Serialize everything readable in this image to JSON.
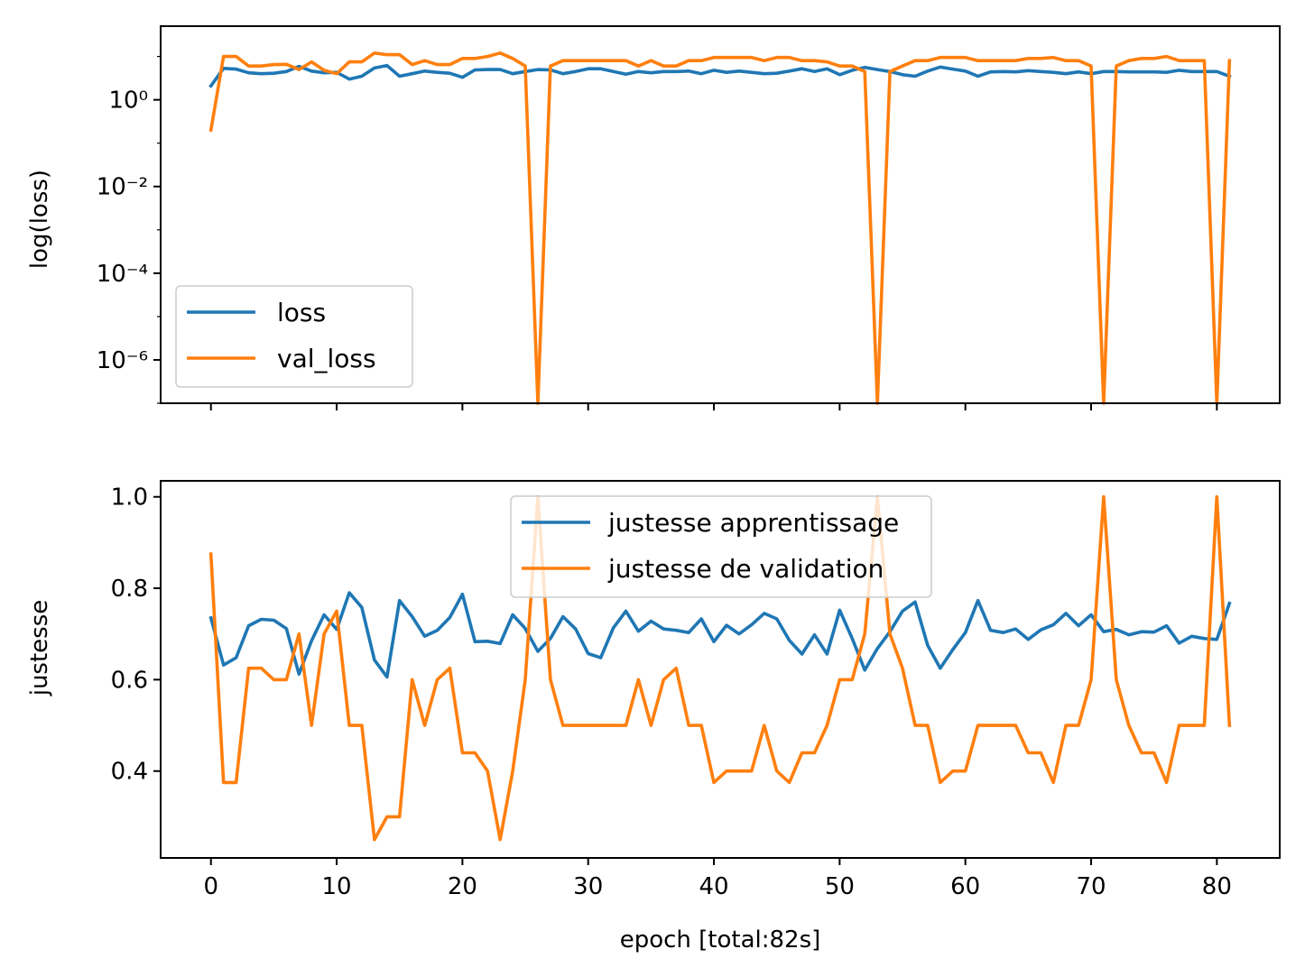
{
  "chart_data": [
    {
      "type": "line",
      "ylabel": "log(loss)",
      "yscale": "log",
      "ylim": [
        1e-07,
        50
      ],
      "xlim": [
        -4,
        85
      ],
      "yticks": [
        {
          "value": 1,
          "label": "10⁰"
        },
        {
          "value": 0.01,
          "label": "10⁻²"
        },
        {
          "value": 0.0001,
          "label": "10⁻⁴"
        },
        {
          "value": 1e-06,
          "label": "10⁻⁶"
        }
      ],
      "xticks": [
        0,
        10,
        20,
        30,
        40,
        50,
        60,
        70,
        80
      ],
      "show_x_tick_labels": false,
      "legend": "lower-left",
      "grid": false,
      "series": [
        {
          "name": "loss",
          "color": "#1f77b4",
          "values": [
            2.1,
            5.3,
            5.1,
            4.2,
            4.0,
            4.1,
            4.5,
            5.9,
            4.6,
            4.2,
            4.3,
            3.0,
            3.5,
            5.4,
            6.2,
            3.5,
            4.0,
            4.6,
            4.3,
            4.1,
            3.3,
            4.9,
            5.0,
            5.0,
            4.0,
            4.5,
            5.0,
            4.9,
            4.0,
            4.5,
            5.2,
            5.2,
            4.5,
            3.9,
            4.5,
            4.2,
            4.5,
            4.5,
            4.6,
            4.0,
            4.8,
            4.3,
            4.6,
            4.3,
            4.0,
            4.1,
            4.6,
            5.2,
            4.5,
            5.2,
            3.8,
            4.8,
            5.6,
            5.0,
            4.5,
            3.8,
            3.5,
            4.6,
            5.7,
            5.1,
            4.6,
            3.5,
            4.4,
            4.5,
            4.4,
            4.7,
            4.5,
            4.3,
            4.0,
            4.4,
            4.0,
            4.5,
            4.5,
            4.4,
            4.4,
            4.4,
            4.3,
            4.8,
            4.5,
            4.5,
            4.5,
            3.5
          ]
        },
        {
          "name": "val_loss",
          "color": "#ff7f0e",
          "values": [
            0.2,
            10,
            10,
            6.0,
            6.0,
            6.5,
            6.6,
            5.0,
            7.5,
            4.8,
            4.0,
            7.5,
            7.5,
            12.0,
            11.0,
            11.0,
            6.5,
            8.0,
            6.5,
            6.5,
            9.0,
            9.0,
            10.0,
            12.0,
            9.0,
            6.0,
            1e-07,
            6.0,
            8.0,
            8.0,
            8.0,
            8.0,
            8.0,
            8.0,
            6.0,
            8.0,
            6.0,
            6.0,
            8.0,
            8.0,
            9.5,
            9.5,
            9.5,
            9.5,
            8.0,
            9.5,
            9.5,
            8.0,
            8.0,
            7.5,
            6.0,
            6.0,
            4.5,
            1e-07,
            4.5,
            6.0,
            8.0,
            8.0,
            9.5,
            9.5,
            9.5,
            8.0,
            8.0,
            8.0,
            8.0,
            9.0,
            9.0,
            9.5,
            8.0,
            8.0,
            6.0,
            1e-07,
            6.0,
            8.0,
            9.0,
            9.0,
            10.0,
            8.0,
            8.0,
            8.0,
            1e-07,
            8.0
          ]
        }
      ]
    },
    {
      "type": "line",
      "xlabel": "epoch [total:82s]",
      "ylabel": "justesse",
      "ylim": [
        0.21,
        1.035
      ],
      "xlim": [
        -4,
        85
      ],
      "yticks": [
        {
          "value": 0.4,
          "label": "0.4"
        },
        {
          "value": 0.6,
          "label": "0.6"
        },
        {
          "value": 0.8,
          "label": "0.8"
        },
        {
          "value": 1.0,
          "label": "1.0"
        }
      ],
      "xticks": [
        0,
        10,
        20,
        30,
        40,
        50,
        60,
        70,
        80
      ],
      "show_x_tick_labels": true,
      "legend": "upper-center",
      "grid": false,
      "series": [
        {
          "name": "justesse apprentissage",
          "color": "#1f77b4",
          "values": [
            0.735,
            0.632,
            0.648,
            0.718,
            0.732,
            0.73,
            0.712,
            0.612,
            0.685,
            0.742,
            0.71,
            0.79,
            0.758,
            0.643,
            0.606,
            0.773,
            0.738,
            0.695,
            0.708,
            0.736,
            0.787,
            0.683,
            0.684,
            0.679,
            0.742,
            0.712,
            0.662,
            0.69,
            0.738,
            0.711,
            0.657,
            0.648,
            0.713,
            0.75,
            0.706,
            0.728,
            0.711,
            0.708,
            0.703,
            0.733,
            0.683,
            0.719,
            0.7,
            0.72,
            0.745,
            0.733,
            0.686,
            0.656,
            0.698,
            0.656,
            0.752,
            0.69,
            0.621,
            0.668,
            0.705,
            0.75,
            0.77,
            0.675,
            0.625,
            0.666,
            0.703,
            0.773,
            0.708,
            0.703,
            0.711,
            0.688,
            0.709,
            0.72,
            0.745,
            0.718,
            0.742,
            0.705,
            0.71,
            0.698,
            0.705,
            0.704,
            0.718,
            0.68,
            0.695,
            0.69,
            0.688,
            0.767
          ]
        },
        {
          "name": "justesse de validation",
          "color": "#ff7f0e",
          "values": [
            0.875,
            0.375,
            0.375,
            0.625,
            0.625,
            0.6,
            0.6,
            0.7,
            0.5,
            0.7,
            0.75,
            0.5,
            0.5,
            0.25,
            0.3,
            0.3,
            0.6,
            0.5,
            0.6,
            0.625,
            0.44,
            0.44,
            0.4,
            0.25,
            0.4,
            0.6,
            1.0,
            0.6,
            0.5,
            0.5,
            0.5,
            0.5,
            0.5,
            0.5,
            0.6,
            0.5,
            0.6,
            0.625,
            0.5,
            0.5,
            0.375,
            0.4,
            0.4,
            0.4,
            0.5,
            0.4,
            0.375,
            0.44,
            0.44,
            0.5,
            0.6,
            0.6,
            0.7,
            1.0,
            0.7,
            0.625,
            0.5,
            0.5,
            0.375,
            0.4,
            0.4,
            0.5,
            0.5,
            0.5,
            0.5,
            0.44,
            0.44,
            0.375,
            0.5,
            0.5,
            0.6,
            1.0,
            0.6,
            0.5,
            0.44,
            0.44,
            0.375,
            0.5,
            0.5,
            0.5,
            1.0,
            0.5
          ]
        }
      ]
    }
  ]
}
